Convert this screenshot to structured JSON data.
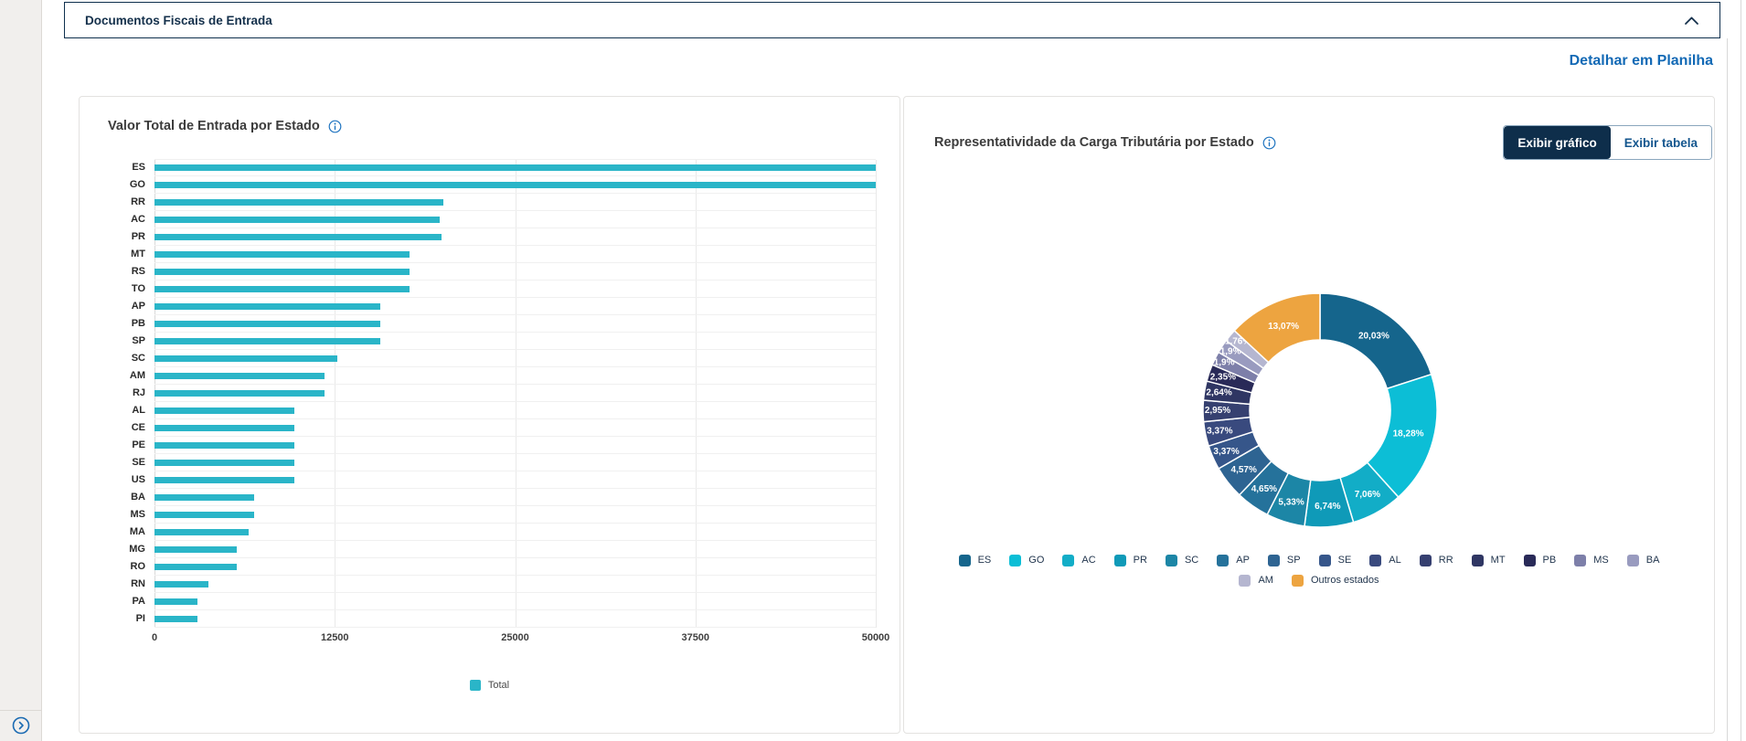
{
  "accordion": {
    "title": "Documentos Fiscais de Entrada"
  },
  "toolbar": {
    "detail_link": "Detalhar em Planilha"
  },
  "colors": {
    "accent_navy": "#0e2f4d",
    "link_blue": "#1269b5",
    "bar_teal": "#2ab5c8",
    "outros_orange": "#eda440",
    "card_border": "#e3e2e0"
  },
  "icons": {
    "header_collapse": "chevron-up-icon",
    "card_info": "info-circle-icon",
    "rail_expand": "chevron-right-circle-icon"
  },
  "bar_card": {
    "title": "Valor Total de Entrada por Estado"
  },
  "donut_card": {
    "title": "Representatividade da Carga Tributária por Estado",
    "buttons": {
      "chart": "Exibir gráfico",
      "table": "Exibir tabela",
      "active": "chart"
    }
  },
  "chart_data": [
    {
      "type": "bar",
      "orientation": "horizontal",
      "title": "Valor Total de Entrada por Estado",
      "categories": [
        "ES",
        "GO",
        "RR",
        "AC",
        "PR",
        "MT",
        "RS",
        "TO",
        "AP",
        "PB",
        "SP",
        "SC",
        "AM",
        "RJ",
        "AL",
        "CE",
        "PE",
        "SE",
        "US",
        "BA",
        "MS",
        "MA",
        "MG",
        "RO",
        "RN",
        "PA",
        "PI"
      ],
      "values": [
        50000,
        50000,
        20000,
        19800,
        19900,
        17700,
        17700,
        17700,
        15650,
        15650,
        15650,
        12650,
        11800,
        11800,
        9700,
        9700,
        9700,
        9700,
        9700,
        6900,
        6900,
        6500,
        5700,
        5700,
        3750,
        3000,
        2950
      ],
      "series_name": "Total",
      "bar_color": "#2ab5c8",
      "xlabel": "",
      "ylabel": "",
      "xlim": [
        0,
        50000
      ],
      "xticks": [
        0,
        12500,
        25000,
        37500,
        50000
      ],
      "grid": true,
      "legend_position": "bottom"
    },
    {
      "type": "pie",
      "donut": true,
      "title": "Representatividade da Carga Tributária por Estado",
      "labels": [
        "ES",
        "GO",
        "AC",
        "PR",
        "SC",
        "AP",
        "SP",
        "SE",
        "AL",
        "RR",
        "MT",
        "PB",
        "MS",
        "BA",
        "AM",
        "Outros estados"
      ],
      "values": [
        20.03,
        18.28,
        7.06,
        6.74,
        5.33,
        4.65,
        4.57,
        3.37,
        3.37,
        2.95,
        2.64,
        2.35,
        1.9,
        1.9,
        1.76,
        13.07
      ],
      "value_labels": [
        "20,03%",
        "18,28%",
        "7,06%",
        "6,74%",
        "5,33%",
        "4,65%",
        "4,57%",
        "3,37%",
        "3,37%",
        "2,95%",
        "2,64%",
        "2,35%",
        "1,9%",
        "1,9%",
        "1,76%",
        "13,07%"
      ],
      "colors": [
        "#15658c",
        "#0cbed6",
        "#12adc7",
        "#0f9ab8",
        "#1c86a6",
        "#25729b",
        "#2e6492",
        "#36568a",
        "#394a7e",
        "#364070",
        "#2f3663",
        "#292a58",
        "#7d7fa9",
        "#999bbf",
        "#b5b6d0",
        "#eda440"
      ],
      "legend_position": "bottom",
      "legend_rows": [
        14,
        2
      ]
    }
  ]
}
